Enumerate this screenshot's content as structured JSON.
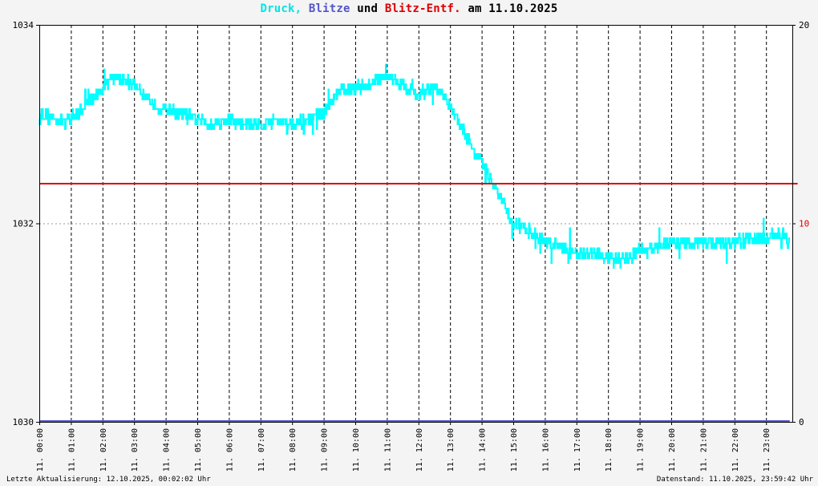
{
  "title": {
    "series1": "Druck,",
    "series2": "Blitze",
    "joiner": "und",
    "series3": "Blitz-Entf.",
    "date_text": "am 11.10.2025"
  },
  "footer": {
    "left": "Letzte Aktualisierung: 12.10.2025, 00:02:02 Uhr",
    "right": "Datenstand: 11.10.2025, 23:59:42 Uhr"
  },
  "colors": {
    "druck": "#00ffff",
    "blitze": "#5555cc",
    "blitz_entf": "#dd0000",
    "grid": "#000000",
    "axis_right": "#000000"
  },
  "chart_data": {
    "type": "line",
    "title": "Druck, Blitze und Blitz-Entf. am 11.10.2025",
    "x_ticks": [
      "11. 00:00",
      "11. 01:00",
      "11. 02:00",
      "11. 03:00",
      "11. 04:00",
      "11. 05:00",
      "11. 06:00",
      "11. 07:00",
      "11. 08:00",
      "11. 09:00",
      "11. 10:00",
      "11. 11:00",
      "11. 12:00",
      "11. 13:00",
      "11. 14:00",
      "11. 15:00",
      "11. 16:00",
      "11. 17:00",
      "11. 18:00",
      "11. 19:00",
      "11. 20:00",
      "11. 21:00",
      "11. 22:00",
      "11. 23:00"
    ],
    "x_range_hours": [
      0,
      24
    ],
    "y_left": {
      "min": 1030,
      "max": 1034,
      "ticks": [
        "1030",
        "1032",
        "1034"
      ]
    },
    "y_right": {
      "min": 0,
      "max": 20,
      "ticks": [
        "0",
        "10",
        "20"
      ]
    },
    "series": [
      {
        "name": "Druck",
        "axis": "left",
        "hours": [
          0,
          0.5,
          1,
          1.5,
          2,
          2.3,
          2.6,
          3,
          3.3,
          3.6,
          4,
          4.5,
          5,
          5.5,
          6,
          6.5,
          7,
          7.5,
          8,
          8.5,
          9,
          9.3,
          9.6,
          10,
          10.5,
          10.9,
          11.2,
          11.6,
          12,
          12.4,
          12.8,
          13.1,
          13.4,
          13.8,
          14.2,
          14.6,
          15,
          15.4,
          15.8,
          16.2,
          16.6,
          17,
          17.5,
          18,
          18.5,
          19,
          19.5,
          20,
          20.5,
          21,
          21.5,
          22,
          22.5,
          23,
          23.5,
          23.75
        ],
        "values": [
          1033.1,
          1033.05,
          1033.05,
          1033.2,
          1033.35,
          1033.5,
          1033.45,
          1033.4,
          1033.3,
          1033.2,
          1033.15,
          1033.1,
          1033.05,
          1033.0,
          1033.05,
          1033.0,
          1033.0,
          1033.05,
          1033.0,
          1033.05,
          1033.1,
          1033.25,
          1033.35,
          1033.35,
          1033.4,
          1033.5,
          1033.45,
          1033.35,
          1033.3,
          1033.35,
          1033.3,
          1033.1,
          1032.95,
          1032.7,
          1032.5,
          1032.25,
          1032.0,
          1031.95,
          1031.85,
          1031.8,
          1031.75,
          1031.7,
          1031.7,
          1031.65,
          1031.65,
          1031.7,
          1031.75,
          1031.8,
          1031.8,
          1031.8,
          1031.8,
          1031.8,
          1031.85,
          1031.85,
          1031.9,
          1031.8
        ],
        "noise": 0.06
      },
      {
        "name": "Blitze",
        "axis": "right",
        "hours": [
          0,
          23.75
        ],
        "values": [
          0,
          0
        ]
      },
      {
        "name": "Blitz-Entf.",
        "axis": "right",
        "hours": [
          0,
          24
        ],
        "values": [
          12,
          12
        ]
      }
    ],
    "grid": {
      "vertical_dashed": true,
      "horizontal_dotted_at": [
        1032
      ]
    }
  }
}
